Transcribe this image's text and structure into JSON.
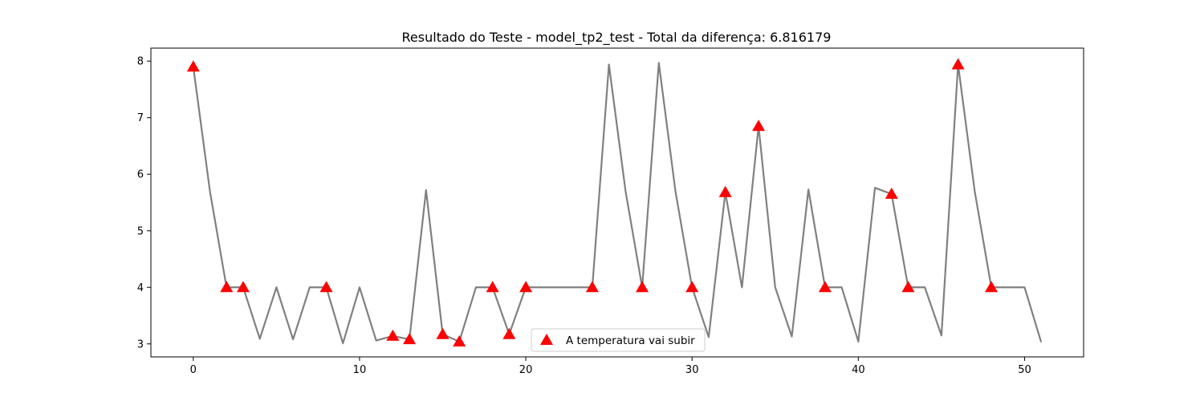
{
  "chart_data": {
    "type": "line",
    "title": "Resultado do Teste - model_tp2_test - Total da diferença: 6.816179",
    "xlabel": "",
    "ylabel": "",
    "xlim": [
      -2.55,
      53.55
    ],
    "ylim": [
      2.77,
      8.23
    ],
    "xticks": [
      0,
      10,
      20,
      30,
      40,
      50
    ],
    "yticks": [
      3,
      4,
      5,
      6,
      7,
      8
    ],
    "grid": false,
    "legend_position": "lower-center",
    "series": [
      {
        "type": "line",
        "color": "#808080",
        "x": [
          0,
          1,
          2,
          3,
          4,
          5,
          6,
          7,
          8,
          9,
          10,
          11,
          12,
          13,
          14,
          15,
          16,
          17,
          18,
          19,
          20,
          21,
          22,
          23,
          24,
          25,
          26,
          27,
          28,
          29,
          30,
          31,
          32,
          33,
          34,
          35,
          36,
          37,
          38,
          39,
          40,
          41,
          42,
          43,
          44,
          45,
          46,
          47,
          48,
          49,
          50,
          51
        ],
        "y": [
          7.9,
          5.7,
          4.0,
          4.0,
          3.09,
          4.0,
          3.08,
          4.0,
          4.0,
          3.01,
          4.0,
          3.06,
          3.14,
          3.08,
          5.72,
          3.17,
          3.04,
          4.0,
          4.0,
          3.17,
          4.0,
          4.0,
          4.0,
          4.0,
          4.0,
          7.94,
          5.7,
          4.0,
          7.97,
          5.7,
          4.0,
          3.12,
          5.68,
          4.0,
          6.85,
          4.0,
          3.13,
          5.73,
          4.0,
          4.0,
          3.04,
          5.76,
          5.65,
          4.0,
          4.0,
          3.15,
          7.94,
          5.7,
          4.0,
          4.0,
          4.0,
          3.03
        ]
      },
      {
        "type": "scatter",
        "name": "A temperatura vai subir",
        "marker": "triangle-up",
        "color": "#ff0000",
        "x": [
          0,
          2,
          3,
          8,
          12,
          13,
          15,
          16,
          18,
          19,
          20,
          24,
          27,
          30,
          32,
          34,
          38,
          42,
          43,
          46,
          48
        ],
        "y": [
          7.9,
          4.0,
          4.0,
          4.0,
          3.14,
          3.08,
          3.17,
          3.04,
          4.0,
          3.17,
          4.0,
          4.0,
          4.0,
          4.0,
          5.68,
          6.85,
          4.0,
          5.65,
          4.0,
          7.94,
          4.0
        ]
      }
    ]
  }
}
